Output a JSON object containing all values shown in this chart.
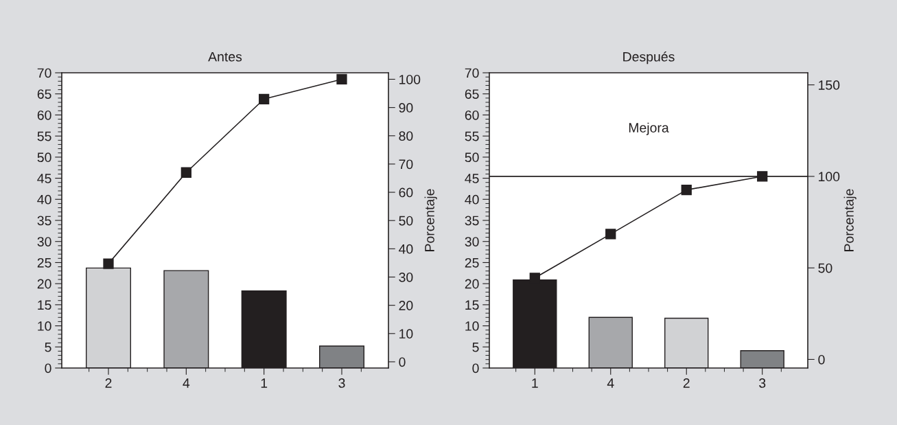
{
  "chart_data": [
    {
      "type": "bar",
      "title": "Antes",
      "y2label": "Porcentaje",
      "categories": [
        "2",
        "4",
        "1",
        "3"
      ],
      "series": [
        {
          "colors": [
            "#d1d2d4",
            "#a7a8ab",
            "#231f20",
            "#808285"
          ],
          "values": [
            23.7,
            23.1,
            18.3,
            5.2
          ]
        },
        {
          "type": "line",
          "axis": "y2",
          "color": "#231f20",
          "marker": "square",
          "values": [
            34.7,
            67,
            93,
            100
          ]
        }
      ],
      "ylim": [
        0,
        70
      ],
      "yticks": [
        0,
        5,
        10,
        15,
        20,
        25,
        30,
        35,
        40,
        45,
        50,
        55,
        60,
        65,
        70
      ],
      "y2lim": [
        -2.2,
        102.3
      ],
      "y2ticks": [
        0,
        10,
        20,
        30,
        40,
        50,
        60,
        70,
        80,
        90,
        100
      ],
      "grid": false
    },
    {
      "type": "bar",
      "title": "Después",
      "y2label": "Porcentaje",
      "categories": [
        "1",
        "4",
        "2",
        "3"
      ],
      "series": [
        {
          "colors": [
            "#231f20",
            "#a7a8ab",
            "#d1d2d4",
            "#808285"
          ],
          "values": [
            20.9,
            12.0,
            11.8,
            4.1
          ]
        },
        {
          "type": "line",
          "axis": "y2",
          "color": "#231f20",
          "marker": "square",
          "values": [
            44.5,
            68.5,
            92.6,
            100
          ]
        }
      ],
      "ylim": [
        0,
        70
      ],
      "yticks": [
        0,
        5,
        10,
        15,
        20,
        25,
        30,
        35,
        40,
        45,
        50,
        55,
        60,
        65,
        70
      ],
      "y2lim": [
        -4.7,
        156.6
      ],
      "y2ticks": [
        0,
        50,
        100,
        150
      ],
      "grid": false,
      "ref_lines": [
        {
          "axis": "y2",
          "value": 100,
          "color": "#231f20",
          "line_style": "solid"
        }
      ],
      "annotations": [
        "Mejora"
      ]
    }
  ]
}
